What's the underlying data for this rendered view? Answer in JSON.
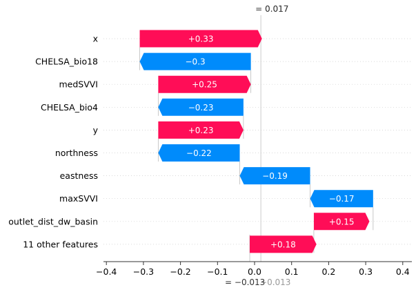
{
  "chart_data": {
    "type": "bar",
    "subtype": "shap-waterfall",
    "title": "",
    "xlabel": "",
    "ylabel": "",
    "xlim": [
      -0.42,
      0.42
    ],
    "xticks": [
      -0.4,
      -0.3,
      -0.2,
      -0.1,
      0.0,
      0.1,
      0.2,
      0.3,
      0.4
    ],
    "xtick_labels": [
      "−0.4",
      "−0.3",
      "−0.2",
      "−0.1",
      "0.0",
      "0.1",
      "0.2",
      "0.3",
      "0.4"
    ],
    "base_value": -0.013,
    "base_label": "= −0.013",
    "base_label_ghost": "−0.013",
    "final_value": 0.017,
    "final_label": "= 0.017",
    "final_label_ghost": "0.017",
    "features": [
      {
        "name": "x",
        "value": 0.33,
        "label": "+0.33",
        "start": -0.31,
        "end": 0.02
      },
      {
        "name": "CHELSA_bio18",
        "value": -0.3,
        "label": "−0.3",
        "start": -0.01,
        "end": -0.31
      },
      {
        "name": "medSVVI",
        "value": 0.25,
        "label": "+0.25",
        "start": -0.26,
        "end": -0.01
      },
      {
        "name": "CHELSA_bio4",
        "value": -0.23,
        "label": "−0.23",
        "start": -0.03,
        "end": -0.26
      },
      {
        "name": "y",
        "value": 0.23,
        "label": "+0.23",
        "start": -0.26,
        "end": -0.03
      },
      {
        "name": "northness",
        "value": -0.22,
        "label": "−0.22",
        "start": -0.04,
        "end": -0.26
      },
      {
        "name": "eastness",
        "value": -0.19,
        "label": "−0.19",
        "start": 0.15,
        "end": -0.04
      },
      {
        "name": "maxSVVI",
        "value": -0.17,
        "label": "−0.17",
        "start": 0.32,
        "end": 0.15
      },
      {
        "name": "outlet_dist_dw_basin",
        "value": 0.15,
        "label": "+0.15",
        "start": 0.16,
        "end": 0.31
      },
      {
        "name": "11 other features",
        "value": 0.18,
        "label": "+0.18",
        "start": -0.013,
        "end": 0.167
      }
    ],
    "colors": {
      "positive": "#ff0d57",
      "negative": "#008bfb",
      "axis": "#333333",
      "grid": "#cccccc",
      "ghost": "#999999"
    }
  }
}
